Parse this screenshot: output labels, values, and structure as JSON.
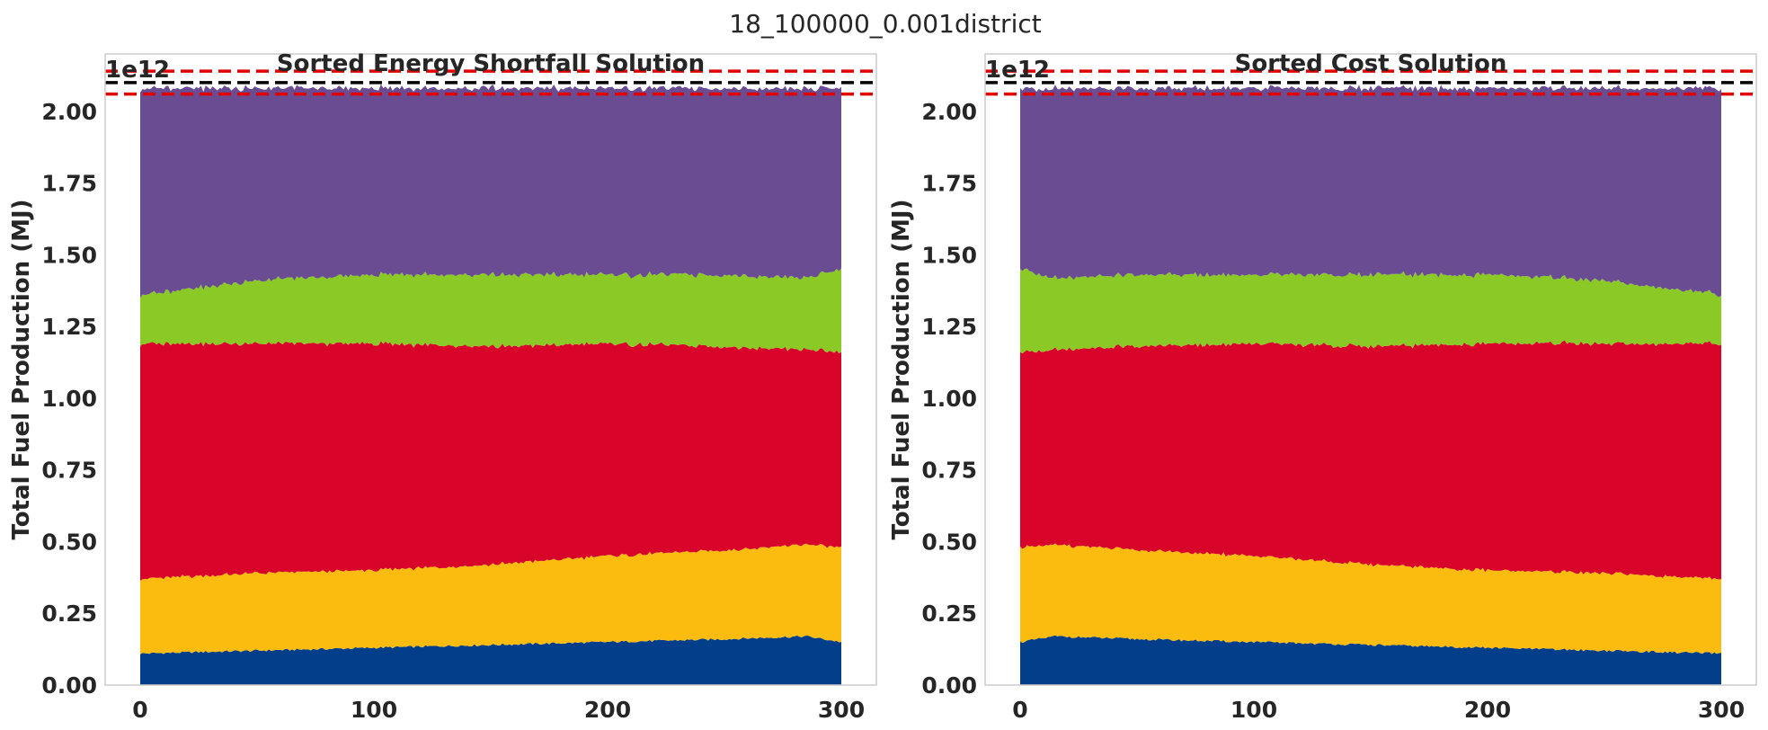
{
  "figure": {
    "suptitle": "18_100000_0.001district"
  },
  "chart_data": [
    {
      "type": "area",
      "stacked": true,
      "title": "Sorted Energy Shortfall Solution",
      "xlabel": "",
      "ylabel": "Total Fuel Production (MJ)",
      "y_offset_label": "1e12",
      "xlim": [
        -15,
        315
      ],
      "ylim": [
        0,
        2200000000000.0
      ],
      "xticks": [
        0,
        100,
        200,
        300
      ],
      "xtick_labels": [
        "0",
        "100",
        "200",
        "300"
      ],
      "yticks": [
        0,
        250000000000.0,
        500000000000.0,
        750000000000.0,
        1000000000000.0,
        1250000000000.0,
        1500000000000.0,
        1750000000000.0,
        2000000000000.0
      ],
      "ytick_labels": [
        "0.00",
        "0.25",
        "0.50",
        "0.75",
        "1.00",
        "1.25",
        "1.50",
        "1.75",
        "2.00"
      ],
      "grid": false,
      "x": [
        0,
        50,
        100,
        150,
        200,
        250,
        285,
        300
      ],
      "series": [
        {
          "color": "#023e8a",
          "values": [
            110000000000.0,
            120000000000.0,
            130000000000.0,
            140000000000.0,
            150000000000.0,
            160000000000.0,
            170000000000.0,
            150000000000.0
          ]
        },
        {
          "color": "#fcbc0f",
          "values": [
            260000000000.0,
            270000000000.0,
            270000000000.0,
            280000000000.0,
            300000000000.0,
            310000000000.0,
            320000000000.0,
            330000000000.0
          ]
        },
        {
          "color": "#d90429",
          "values": [
            820000000000.0,
            800000000000.0,
            790000000000.0,
            760000000000.0,
            740000000000.0,
            710000000000.0,
            680000000000.0,
            680000000000.0
          ]
        },
        {
          "color": "#8ac926",
          "values": [
            170000000000.0,
            220000000000.0,
            240000000000.0,
            250000000000.0,
            240000000000.0,
            250000000000.0,
            250000000000.0,
            290000000000.0
          ]
        },
        {
          "color": "#6a4c93",
          "values": [
            720000000000.0,
            670000000000.0,
            650000000000.0,
            650000000000.0,
            650000000000.0,
            650000000000.0,
            660000000000.0,
            630000000000.0
          ]
        }
      ],
      "hlines": [
        {
          "y": 2140000000000.0,
          "color": "#e00000",
          "style": "dashed"
        },
        {
          "y": 2100000000000.0,
          "color": "#000000",
          "style": "dashed"
        },
        {
          "y": 2060000000000.0,
          "color": "#e00000",
          "style": "dashed"
        }
      ]
    },
    {
      "type": "area",
      "stacked": true,
      "title": "Sorted Cost Solution",
      "xlabel": "",
      "ylabel": "Total Fuel Production (MJ)",
      "y_offset_label": "1e12",
      "xlim": [
        -15,
        315
      ],
      "ylim": [
        0,
        2200000000000.0
      ],
      "xticks": [
        0,
        100,
        200,
        300
      ],
      "xtick_labels": [
        "0",
        "100",
        "200",
        "300"
      ],
      "yticks": [
        0,
        250000000000.0,
        500000000000.0,
        750000000000.0,
        1000000000000.0,
        1250000000000.0,
        1500000000000.0,
        1750000000000.0,
        2000000000000.0
      ],
      "ytick_labels": [
        "0.00",
        "0.25",
        "0.50",
        "0.75",
        "1.00",
        "1.25",
        "1.50",
        "1.75",
        "2.00"
      ],
      "grid": false,
      "x": [
        0,
        15,
        50,
        100,
        150,
        200,
        250,
        300
      ],
      "series": [
        {
          "color": "#023e8a",
          "values": [
            150000000000.0,
            170000000000.0,
            160000000000.0,
            150000000000.0,
            140000000000.0,
            130000000000.0,
            120000000000.0,
            110000000000.0
          ]
        },
        {
          "color": "#fcbc0f",
          "values": [
            330000000000.0,
            320000000000.0,
            310000000000.0,
            300000000000.0,
            280000000000.0,
            270000000000.0,
            270000000000.0,
            260000000000.0
          ]
        },
        {
          "color": "#d90429",
          "values": [
            680000000000.0,
            680000000000.0,
            710000000000.0,
            740000000000.0,
            760000000000.0,
            790000000000.0,
            800000000000.0,
            820000000000.0
          ]
        },
        {
          "color": "#8ac926",
          "values": [
            290000000000.0,
            250000000000.0,
            250000000000.0,
            240000000000.0,
            250000000000.0,
            240000000000.0,
            220000000000.0,
            170000000000.0
          ]
        },
        {
          "color": "#6a4c93",
          "values": [
            630000000000.0,
            660000000000.0,
            650000000000.0,
            650000000000.0,
            650000000000.0,
            650000000000.0,
            670000000000.0,
            720000000000.0
          ]
        }
      ],
      "hlines": [
        {
          "y": 2140000000000.0,
          "color": "#e00000",
          "style": "dashed"
        },
        {
          "y": 2100000000000.0,
          "color": "#000000",
          "style": "dashed"
        },
        {
          "y": 2060000000000.0,
          "color": "#e00000",
          "style": "dashed"
        }
      ]
    }
  ]
}
